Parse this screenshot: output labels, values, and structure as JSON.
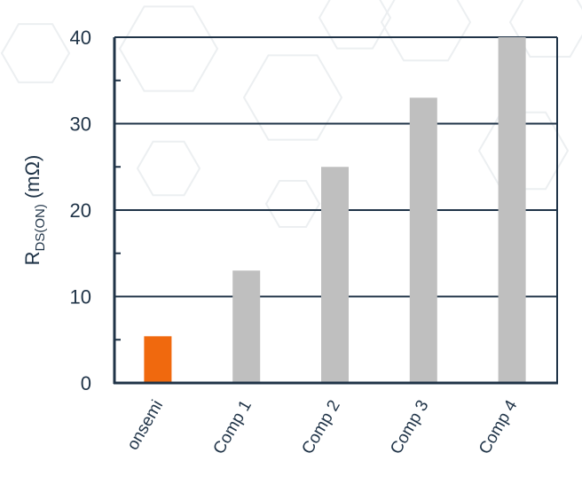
{
  "chart_data": {
    "type": "bar",
    "title": "",
    "xlabel": "",
    "ylabel_main": "R",
    "ylabel_sub": "DS(ON)",
    "ylabel_unit": " (mΩ)",
    "categories": [
      "onsemi",
      "Comp 1",
      "Comp 2",
      "Comp 3",
      "Comp 4"
    ],
    "values": [
      5.4,
      13,
      25,
      33,
      40
    ],
    "colors": [
      "#f0690e",
      "#bfbfbf",
      "#bfbfbf",
      "#bfbfbf",
      "#bfbfbf"
    ],
    "ylim": [
      0,
      40
    ],
    "yticks": [
      0,
      10,
      20,
      30,
      40
    ],
    "minor_ticks": [
      5,
      15,
      25,
      35
    ],
    "grid": true,
    "axis_color": "#1f3347",
    "background": "faint hexagon pattern"
  }
}
